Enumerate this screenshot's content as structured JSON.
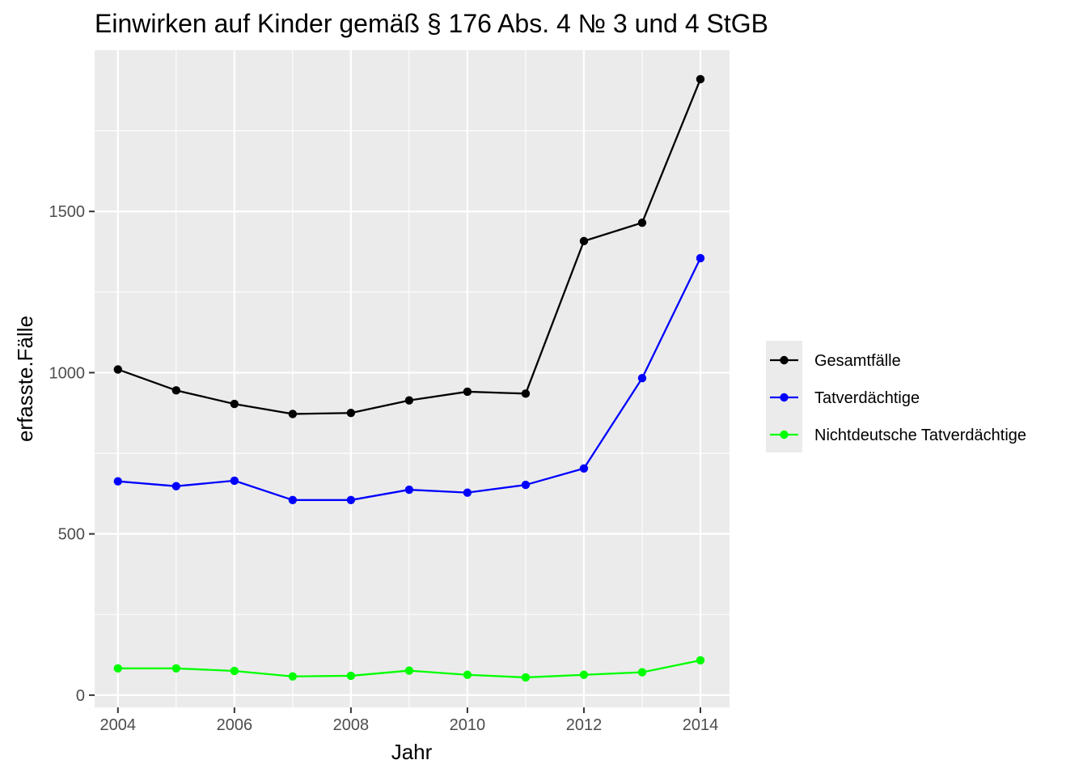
{
  "chart_data": {
    "type": "line",
    "title": "Einwirken auf Kinder gemäß § 176 Abs. 4 № 3 und 4 StGB",
    "xlabel": "Jahr",
    "ylabel": "erfasste.Fälle",
    "x": [
      2004,
      2005,
      2006,
      2007,
      2008,
      2009,
      2010,
      2011,
      2012,
      2013,
      2014
    ],
    "xlim": [
      2003.6,
      2014.5
    ],
    "ylim": [
      -38,
      2000
    ],
    "x_ticks": [
      2004,
      2006,
      2008,
      2010,
      2012,
      2014
    ],
    "x_tick_labels": [
      "2004",
      "2006",
      "2008",
      "2010",
      "2012",
      "2014"
    ],
    "y_ticks": [
      0,
      500,
      1000,
      1500
    ],
    "y_tick_labels": [
      "0",
      "500",
      "1000",
      "1500"
    ],
    "grid": true,
    "legend_position": "right",
    "series": [
      {
        "name": "Gesamtfälle",
        "color": "#000000",
        "values": [
          1010,
          945,
          903,
          872,
          875,
          914,
          941,
          935,
          1408,
          1465,
          1910
        ]
      },
      {
        "name": "Tatverdächtige",
        "color": "#0000ff",
        "values": [
          663,
          648,
          665,
          605,
          605,
          637,
          628,
          652,
          703,
          983,
          1355
        ]
      },
      {
        "name": "Nichtdeutsche Tatverdächtige",
        "color": "#00ff00",
        "values": [
          83,
          83,
          75,
          58,
          60,
          76,
          63,
          55,
          63,
          71,
          108
        ]
      }
    ]
  }
}
